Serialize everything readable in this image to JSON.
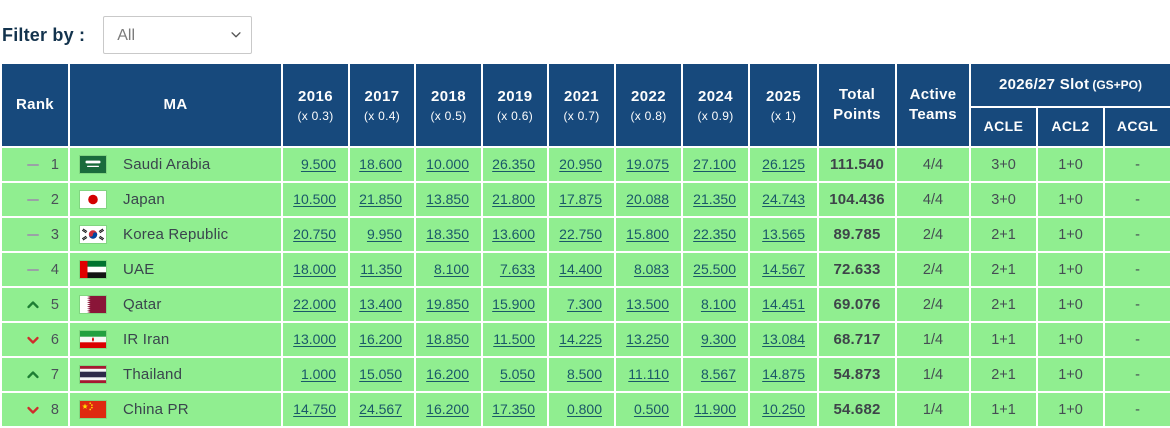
{
  "filter": {
    "label": "Filter by :",
    "value": "All"
  },
  "colors": {
    "header_bg": "#17497c",
    "row_bg": "#90ee90",
    "link": "#1a5868",
    "up_arrow": "#1e7e34",
    "down_arrow": "#d02c2c",
    "same_dash": "#9aa1a6"
  },
  "table": {
    "headers": {
      "rank": "Rank",
      "ma": "MA",
      "years": [
        {
          "year": "2016",
          "mult": "(x 0.3)"
        },
        {
          "year": "2017",
          "mult": "(x 0.4)"
        },
        {
          "year": "2018",
          "mult": "(x 0.5)"
        },
        {
          "year": "2019",
          "mult": "(x 0.6)"
        },
        {
          "year": "2021",
          "mult": "(x 0.7)"
        },
        {
          "year": "2022",
          "mult": "(x 0.8)"
        },
        {
          "year": "2024",
          "mult": "(x 0.9)"
        },
        {
          "year": "2025",
          "mult": "(x 1)"
        }
      ],
      "total": "Total Points",
      "active": "Active Teams",
      "slot_group": "2026/27 Slot",
      "slot_group_suffix": "(GS+PO)",
      "slot_cols": [
        "ACLE",
        "ACL2",
        "ACGL"
      ]
    },
    "rows": [
      {
        "movement": "same",
        "rank": "1",
        "flag": "flag-saudi-arabia",
        "country": "Saudi Arabia",
        "values": [
          "9.500",
          "18.600",
          "10.000",
          "26.350",
          "20.950",
          "19.075",
          "27.100",
          "26.125"
        ],
        "total": "111.540",
        "active": "4/4",
        "acle": "3+0",
        "acl2": "1+0",
        "acgl": "-"
      },
      {
        "movement": "same",
        "rank": "2",
        "flag": "flag-japan",
        "country": "Japan",
        "values": [
          "10.500",
          "21.850",
          "13.850",
          "21.800",
          "17.875",
          "20.088",
          "21.350",
          "24.743"
        ],
        "total": "104.436",
        "active": "4/4",
        "acle": "3+0",
        "acl2": "1+0",
        "acgl": "-"
      },
      {
        "movement": "same",
        "rank": "3",
        "flag": "flag-korea-republic",
        "country": "Korea Republic",
        "values": [
          "20.750",
          "9.950",
          "18.350",
          "13.600",
          "22.750",
          "15.800",
          "22.350",
          "13.565"
        ],
        "total": "89.785",
        "active": "2/4",
        "acle": "2+1",
        "acl2": "1+0",
        "acgl": "-"
      },
      {
        "movement": "same",
        "rank": "4",
        "flag": "flag-uae",
        "country": "UAE",
        "values": [
          "18.000",
          "11.350",
          "8.100",
          "7.633",
          "14.400",
          "8.083",
          "25.500",
          "14.567"
        ],
        "total": "72.633",
        "active": "2/4",
        "acle": "2+1",
        "acl2": "1+0",
        "acgl": "-"
      },
      {
        "movement": "up",
        "rank": "5",
        "flag": "flag-qatar",
        "country": "Qatar",
        "values": [
          "22.000",
          "13.400",
          "19.850",
          "15.900",
          "7.300",
          "13.500",
          "8.100",
          "14.451"
        ],
        "total": "69.076",
        "active": "2/4",
        "acle": "2+1",
        "acl2": "1+0",
        "acgl": "-"
      },
      {
        "movement": "down",
        "rank": "6",
        "flag": "flag-iran",
        "country": "IR Iran",
        "values": [
          "13.000",
          "16.200",
          "18.850",
          "11.500",
          "14.225",
          "13.250",
          "9.300",
          "13.084"
        ],
        "total": "68.717",
        "active": "1/4",
        "acle": "1+1",
        "acl2": "1+0",
        "acgl": "-"
      },
      {
        "movement": "up",
        "rank": "7",
        "flag": "flag-thailand",
        "country": "Thailand",
        "values": [
          "1.000",
          "15.050",
          "16.200",
          "5.050",
          "8.500",
          "11.110",
          "8.567",
          "14.875"
        ],
        "total": "54.873",
        "active": "1/4",
        "acle": "2+1",
        "acl2": "1+0",
        "acgl": "-"
      },
      {
        "movement": "down",
        "rank": "8",
        "flag": "flag-china",
        "country": "China PR",
        "values": [
          "14.750",
          "24.567",
          "16.200",
          "17.350",
          "0.800",
          "0.500",
          "11.900",
          "10.250"
        ],
        "total": "54.682",
        "active": "1/4",
        "acle": "1+1",
        "acl2": "1+0",
        "acgl": "-"
      }
    ]
  }
}
